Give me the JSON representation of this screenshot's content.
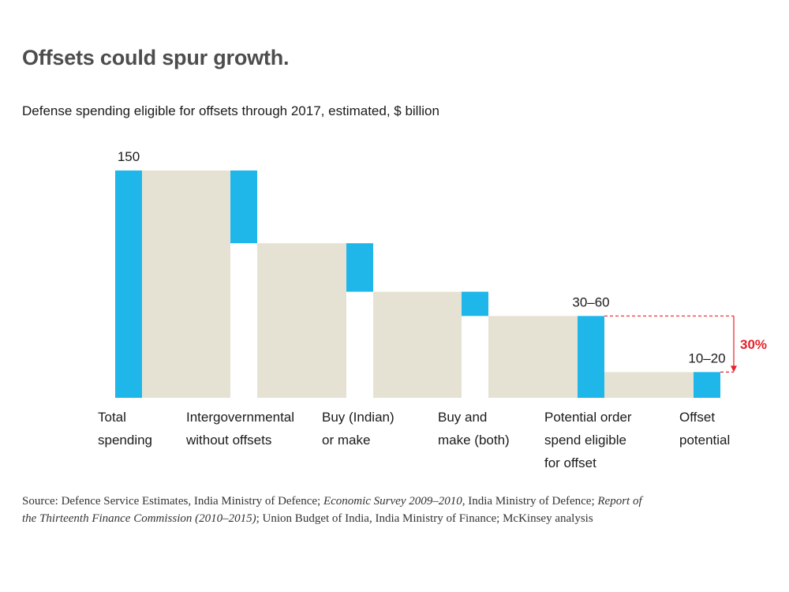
{
  "header": {
    "title": "Offsets could spur growth.",
    "subtitle": "Defense spending eligible for offsets through 2017, estimated, $ billion"
  },
  "colors": {
    "bar": "#1fb6ea",
    "fill": "#e6e2d3",
    "accent": "#e8202a",
    "text": "#1a1a1a"
  },
  "chart_data": {
    "type": "bar",
    "subtype": "waterfall",
    "title": "Defense spending eligible for offsets through 2017, estimated, $ billion",
    "unit": "$ billion",
    "categories": [
      [
        "Total",
        "spending"
      ],
      [
        "Intergovernmental",
        "without offsets"
      ],
      [
        "Buy (Indian)",
        "or make"
      ],
      [
        "Buy and",
        "make (both)"
      ],
      [
        "Potential order",
        "spend eligible",
        "for offset"
      ],
      [
        "Offset",
        "potential"
      ]
    ],
    "bars": [
      {
        "kind": "total",
        "top": 150,
        "bottom": 0,
        "label": "150"
      },
      {
        "kind": "decrement",
        "top": 150,
        "bottom": 102,
        "label": ""
      },
      {
        "kind": "decrement",
        "top": 102,
        "bottom": 70,
        "label": ""
      },
      {
        "kind": "decrement",
        "top": 70,
        "bottom": 54,
        "label": ""
      },
      {
        "kind": "total",
        "top": 54,
        "bottom": 0,
        "label": "30–60"
      },
      {
        "kind": "total",
        "top": 17,
        "bottom": 0,
        "label": "10–20"
      }
    ],
    "ylim": [
      0,
      150
    ],
    "annotation": {
      "label": "30%",
      "from_value": 54,
      "to_value": 17
    }
  },
  "source": {
    "parts": [
      {
        "text": "Source: Defence Service Estimates, India Ministry of Defence; ",
        "italic": false
      },
      {
        "text": "Economic Survey 2009–2010",
        "italic": true
      },
      {
        "text": ", India Ministry of Defence; ",
        "italic": false
      },
      {
        "text": "Report of the Thirteenth Finance Commission (2010–2015)",
        "italic": true
      },
      {
        "text": "; Union Budget of India, India Ministry of Finance; McKinsey analysis",
        "italic": false
      }
    ]
  }
}
